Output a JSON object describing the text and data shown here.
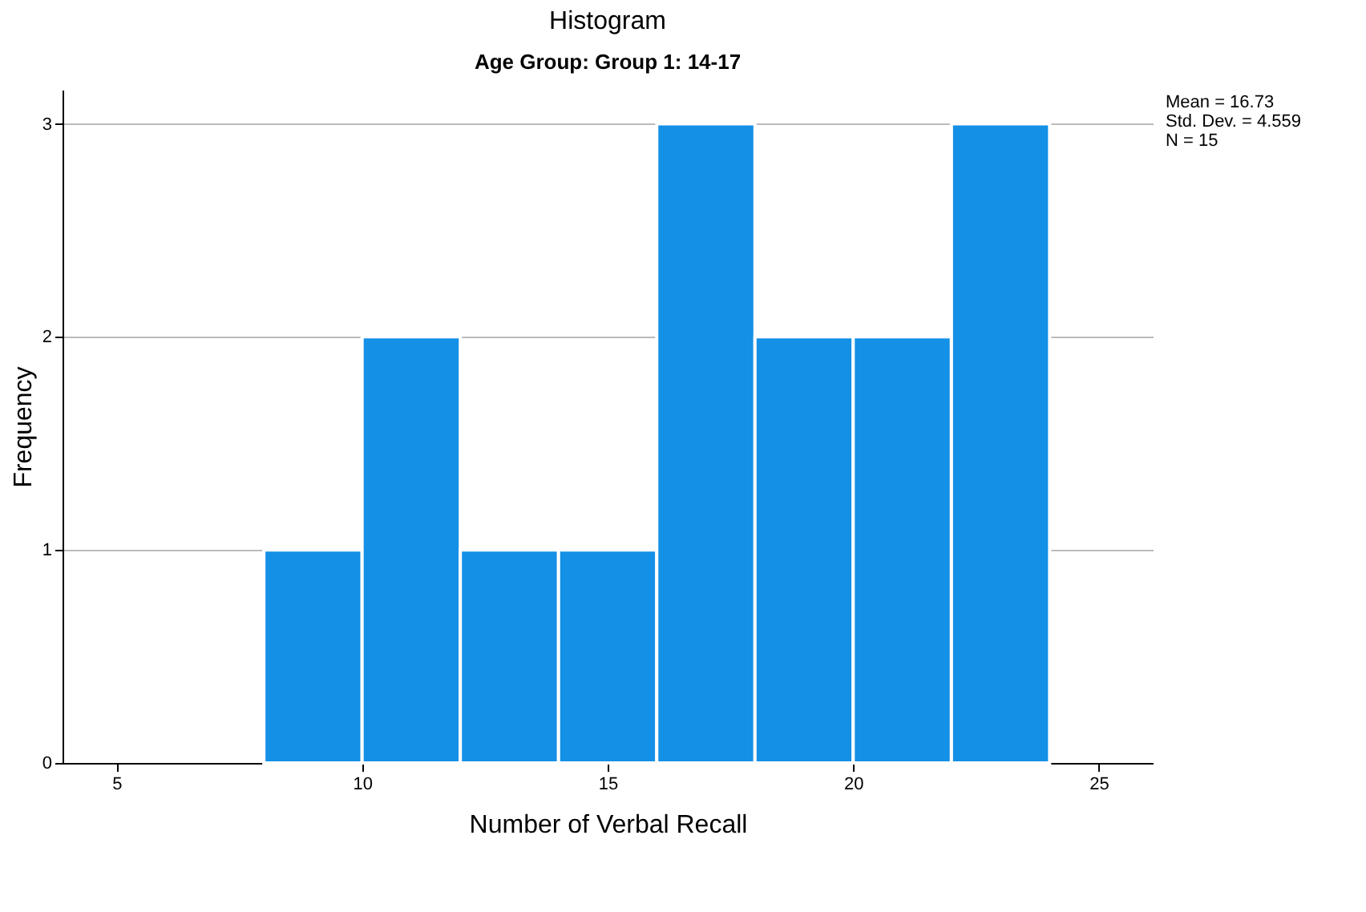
{
  "chart_data": {
    "type": "histogram",
    "title": "Histogram",
    "subtitle": "Age Group: Group 1: 14-17",
    "xlabel": "Number of Verbal Recall",
    "ylabel": "Frequency",
    "bins": [
      8,
      10,
      12,
      14,
      16,
      18,
      20,
      22,
      24
    ],
    "values": [
      1,
      2,
      1,
      1,
      3,
      2,
      2,
      3
    ],
    "color": "#1490e6",
    "xlim": [
      3.9,
      26.1
    ],
    "xticks": [
      5,
      10,
      15,
      20,
      25
    ],
    "ylim": [
      0,
      3.16
    ],
    "yticks": [
      0,
      1,
      2,
      3
    ],
    "grid": "y",
    "annotations": [
      "Mean = 16.73",
      "Std. Dev. = 4.559",
      "N = 15"
    ]
  }
}
